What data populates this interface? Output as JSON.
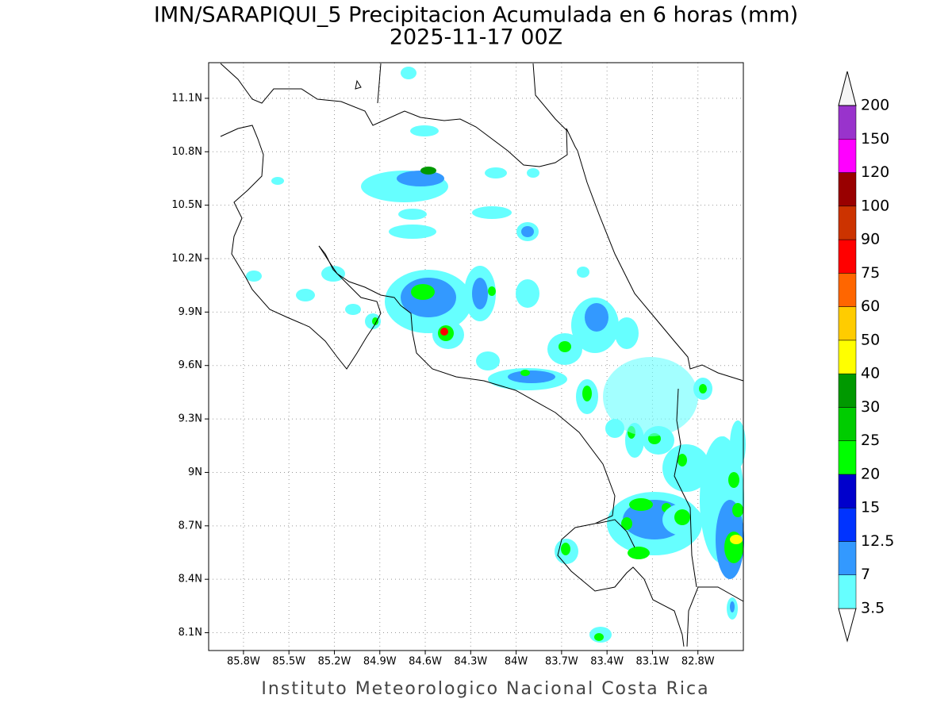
{
  "map": {
    "title": "IMN/SARAPIQUI_5 Precipitacion Acumulada en 6 horas (mm)",
    "subtitle": "2025-11-17 00Z",
    "footer": "Instituto Meteorologico Nacional Costa Rica",
    "xlim": [
      -86.03,
      -82.5
    ],
    "ylim": [
      8.0,
      11.3
    ],
    "xticks": [
      {
        "value": -85.8,
        "label": "85.8W"
      },
      {
        "value": -85.5,
        "label": "85.5W"
      },
      {
        "value": -85.2,
        "label": "85.2W"
      },
      {
        "value": -84.9,
        "label": "84.9W"
      },
      {
        "value": -84.6,
        "label": "84.6W"
      },
      {
        "value": -84.3,
        "label": "84.3W"
      },
      {
        "value": -84.0,
        "label": "84W"
      },
      {
        "value": -83.7,
        "label": "83.7W"
      },
      {
        "value": -83.4,
        "label": "83.4W"
      },
      {
        "value": -83.1,
        "label": "83.1W"
      },
      {
        "value": -82.8,
        "label": "82.8W"
      }
    ],
    "yticks": [
      {
        "value": 8.1,
        "label": "8.1N"
      },
      {
        "value": 8.4,
        "label": "8.4N"
      },
      {
        "value": 8.7,
        "label": "8.7N"
      },
      {
        "value": 9.0,
        "label": "9N"
      },
      {
        "value": 9.3,
        "label": "9.3N"
      },
      {
        "value": 9.6,
        "label": "9.6N"
      },
      {
        "value": 9.9,
        "label": "9.9N"
      },
      {
        "value": 10.2,
        "label": "10.2N"
      },
      {
        "value": 10.5,
        "label": "10.5N"
      },
      {
        "value": 10.8,
        "label": "10.8N"
      },
      {
        "value": 11.1,
        "label": "11.1N"
      }
    ],
    "grid": true,
    "colorbar": {
      "levels": [
        3.5,
        7,
        12.5,
        15,
        20,
        25,
        30,
        40,
        50,
        60,
        75,
        90,
        100,
        120,
        150,
        200
      ],
      "colors": [
        "#ffffff",
        "#66ffff",
        "#3399ff",
        "#0033ff",
        "#0000cc",
        "#00ff00",
        "#00cc00",
        "#009900",
        "#ffff00",
        "#ffcc00",
        "#ff6600",
        "#ff0000",
        "#cc3300",
        "#990000",
        "#ff00ff",
        "#9933cc",
        "#f5f5f5",
        "#aaaaaa"
      ]
    }
  }
}
